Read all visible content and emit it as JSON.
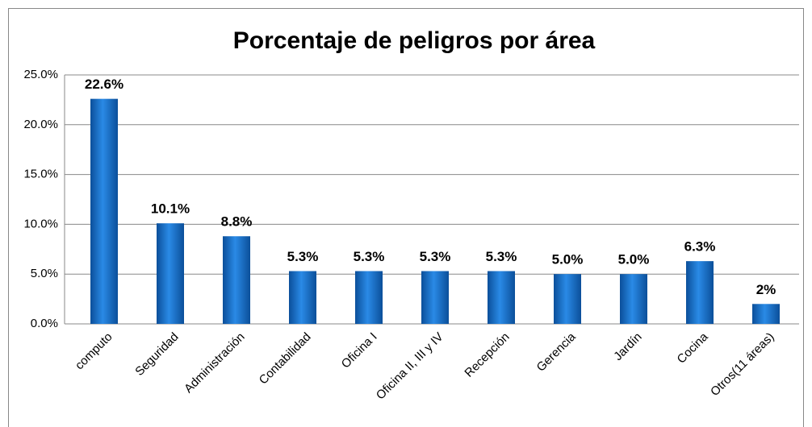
{
  "chart_data": {
    "type": "bar",
    "title": "Porcentaje de peligros por área",
    "categories": [
      "computo",
      "Seguridad",
      "Administración",
      "Contabilidad",
      "Oficina I",
      "Oficina II, III y IV",
      "Recepción",
      "Gerencia",
      "Jardín",
      "Cocina",
      "Otros(11 áreas)"
    ],
    "values": [
      22.6,
      10.1,
      8.8,
      5.3,
      5.3,
      5.3,
      5.3,
      5.0,
      5.0,
      6.3,
      2
    ],
    "value_labels": [
      "22.6%",
      "10.1%",
      "8.8%",
      "5.3%",
      "5.3%",
      "5.3%",
      "5.3%",
      "5.0%",
      "5.0%",
      "6.3%",
      "2%"
    ],
    "color": "#1570c8",
    "ylim": [
      0,
      25
    ],
    "yticks": [
      {
        "value": 0,
        "label": "0.0%"
      },
      {
        "value": 5,
        "label": "5.0%"
      },
      {
        "value": 10,
        "label": "10.0%"
      },
      {
        "value": 15,
        "label": "15.0%"
      },
      {
        "value": 20,
        "label": "20.0%"
      },
      {
        "value": 25,
        "label": "25.0%"
      }
    ],
    "grid": true
  }
}
